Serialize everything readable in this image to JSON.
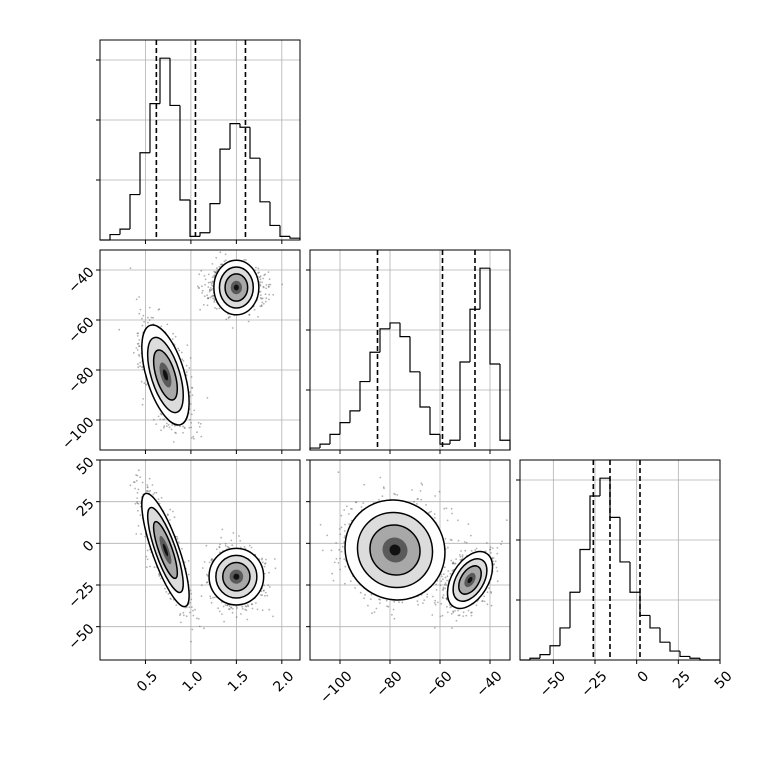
{
  "chart_data": {
    "type": "corner",
    "title": "",
    "grid": true,
    "parameters": [
      {
        "index": 0,
        "range": [
          0.0,
          2.2
        ],
        "ticks": [
          0.5,
          1.0,
          1.5,
          2.0
        ],
        "tick_labels": [
          "0.5",
          "1.0",
          "1.5",
          "2.0"
        ]
      },
      {
        "index": 1,
        "range": [
          -112,
          -32
        ],
        "ticks": [
          -100,
          -80,
          -60,
          -40
        ],
        "tick_labels": [
          "−100",
          "−80",
          "−60",
          "−40"
        ]
      },
      {
        "index": 2,
        "range": [
          -70,
          50
        ],
        "ticks": [
          -50,
          -25,
          0,
          25,
          50
        ],
        "tick_labels": [
          "−50",
          "−25",
          "0",
          "25",
          "50"
        ]
      }
    ],
    "histograms": [
      {
        "param": 0,
        "bin_edges": [
          0.0,
          0.11,
          0.22,
          0.33,
          0.44,
          0.55,
          0.66,
          0.77,
          0.88,
          0.99,
          1.1,
          1.21,
          1.32,
          1.43,
          1.54,
          1.65,
          1.76,
          1.87,
          1.98,
          2.09,
          2.2
        ],
        "counts": [
          0,
          3,
          6,
          25,
          48,
          75,
          100,
          74,
          22,
          2,
          4,
          20,
          50,
          64,
          62,
          45,
          21,
          8,
          2,
          1
        ],
        "quantiles": [
          0.62,
          1.05,
          1.6
        ]
      },
      {
        "param": 1,
        "bin_edges": [
          -112,
          -108,
          -104,
          -100,
          -96,
          -92,
          -88,
          -84,
          -80,
          -76,
          -72,
          -68,
          -64,
          -60,
          -56,
          -52,
          -48,
          -44,
          -40,
          -36,
          -32
        ],
        "counts": [
          1,
          3,
          8,
          14,
          20,
          35,
          50,
          62,
          65,
          58,
          40,
          22,
          8,
          3,
          5,
          45,
          72,
          93,
          44,
          5
        ],
        "quantiles": [
          -85,
          -59,
          -46
        ]
      },
      {
        "param": 2,
        "bin_edges": [
          -70,
          -64,
          -58,
          -52,
          -46,
          -40,
          -34,
          -28,
          -22,
          -16,
          -10,
          -4,
          2,
          8,
          14,
          20,
          26,
          32,
          38,
          44,
          50
        ],
        "counts": [
          0,
          1,
          3,
          8,
          18,
          38,
          62,
          92,
          102,
          80,
          55,
          38,
          25,
          18,
          10,
          5,
          2,
          1,
          0,
          0
        ],
        "quantiles": [
          -26,
          -16,
          2
        ]
      }
    ],
    "scatter_panels": [
      {
        "x_param": 0,
        "y_param": 1,
        "clusters": [
          {
            "mean": [
              0.72,
              -82
            ],
            "sd": [
              0.13,
              10
            ],
            "rho": -0.55,
            "n": 900
          },
          {
            "mean": [
              1.5,
              -47
            ],
            "sd": [
              0.15,
              4.5
            ],
            "rho": 0.0,
            "n": 900
          }
        ]
      },
      {
        "x_param": 0,
        "y_param": 2,
        "clusters": [
          {
            "mean": [
              0.72,
              -4
            ],
            "sd": [
              0.13,
              17
            ],
            "rho": -0.8,
            "n": 900
          },
          {
            "mean": [
              1.5,
              -20
            ],
            "sd": [
              0.15,
              8.5
            ],
            "rho": 0.0,
            "n": 900
          }
        ]
      },
      {
        "x_param": 1,
        "y_param": 2,
        "clusters": [
          {
            "mean": [
              -78,
              -4
            ],
            "sd": [
              10,
              15
            ],
            "rho": -0.05,
            "n": 1000
          },
          {
            "mean": [
              -48,
              -22
            ],
            "sd": [
              4.5,
              8.5
            ],
            "rho": 0.45,
            "n": 900
          }
        ]
      }
    ]
  }
}
